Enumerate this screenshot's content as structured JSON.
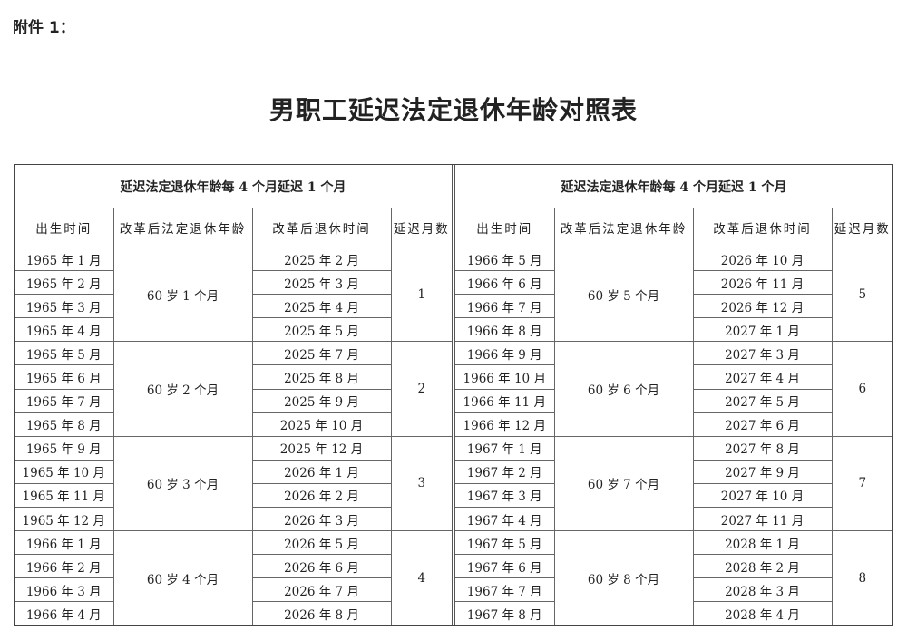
{
  "annex": "附件 1：",
  "title": "男职工延迟法定退休年龄对照表",
  "tables": [
    {
      "caption": "延迟法定退休年龄每 4 个月延迟 1 个月",
      "headers": [
        "出生时间",
        "改革后法定退休年龄",
        "改革后退休时间",
        "延迟月数"
      ],
      "groups": [
        {
          "age": "60 岁 1 个月",
          "months": "1",
          "rows": [
            {
              "birth": "1965 年 1 月",
              "retire": "2025 年 2 月"
            },
            {
              "birth": "1965 年 2 月",
              "retire": "2025 年 3 月"
            },
            {
              "birth": "1965 年 3 月",
              "retire": "2025 年 4 月"
            },
            {
              "birth": "1965 年 4 月",
              "retire": "2025 年 5 月"
            }
          ]
        },
        {
          "age": "60 岁 2 个月",
          "months": "2",
          "rows": [
            {
              "birth": "1965 年 5 月",
              "retire": "2025 年 7 月"
            },
            {
              "birth": "1965 年 6 月",
              "retire": "2025 年 8 月"
            },
            {
              "birth": "1965 年 7 月",
              "retire": "2025 年 9 月"
            },
            {
              "birth": "1965 年 8 月",
              "retire": "2025 年 10 月"
            }
          ]
        },
        {
          "age": "60 岁 3 个月",
          "months": "3",
          "rows": [
            {
              "birth": "1965 年 9 月",
              "retire": "2025 年 12 月"
            },
            {
              "birth": "1965 年 10 月",
              "retire": "2026 年 1 月"
            },
            {
              "birth": "1965 年 11 月",
              "retire": "2026 年 2 月"
            },
            {
              "birth": "1965 年 12 月",
              "retire": "2026 年 3 月"
            }
          ]
        },
        {
          "age": "60 岁 4 个月",
          "months": "4",
          "rows": [
            {
              "birth": "1966 年 1 月",
              "retire": "2026 年 5 月"
            },
            {
              "birth": "1966 年 2 月",
              "retire": "2026 年 6 月"
            },
            {
              "birth": "1966 年 3 月",
              "retire": "2026 年 7 月"
            },
            {
              "birth": "1966 年 4 月",
              "retire": "2026 年 8 月"
            }
          ]
        }
      ]
    },
    {
      "caption": "延迟法定退休年龄每 4 个月延迟 1 个月",
      "headers": [
        "出生时间",
        "改革后法定退休年龄",
        "改革后退休时间",
        "延迟月数"
      ],
      "groups": [
        {
          "age": "60 岁 5 个月",
          "months": "5",
          "rows": [
            {
              "birth": "1966 年 5 月",
              "retire": "2026 年 10 月"
            },
            {
              "birth": "1966 年 6 月",
              "retire": "2026 年 11 月"
            },
            {
              "birth": "1966 年 7 月",
              "retire": "2026 年 12 月"
            },
            {
              "birth": "1966 年 8 月",
              "retire": "2027 年 1 月"
            }
          ]
        },
        {
          "age": "60 岁 6 个月",
          "months": "6",
          "rows": [
            {
              "birth": "1966 年 9 月",
              "retire": "2027 年 3 月"
            },
            {
              "birth": "1966 年 10 月",
              "retire": "2027 年 4 月"
            },
            {
              "birth": "1966 年 11 月",
              "retire": "2027 年 5 月"
            },
            {
              "birth": "1966 年 12 月",
              "retire": "2027 年 6 月"
            }
          ]
        },
        {
          "age": "60 岁 7 个月",
          "months": "7",
          "rows": [
            {
              "birth": "1967 年 1 月",
              "retire": "2027 年 8 月"
            },
            {
              "birth": "1967 年 2 月",
              "retire": "2027 年 9 月"
            },
            {
              "birth": "1967 年 3 月",
              "retire": "2027 年 10 月"
            },
            {
              "birth": "1967 年 4 月",
              "retire": "2027 年 11 月"
            }
          ]
        },
        {
          "age": "60 岁 8 个月",
          "months": "8",
          "rows": [
            {
              "birth": "1967 年 5 月",
              "retire": "2028 年 1 月"
            },
            {
              "birth": "1967 年 6 月",
              "retire": "2028 年 2 月"
            },
            {
              "birth": "1967 年 7 月",
              "retire": "2028 年 3 月"
            },
            {
              "birth": "1967 年 8 月",
              "retire": "2028 年 4 月"
            }
          ]
        }
      ]
    }
  ]
}
